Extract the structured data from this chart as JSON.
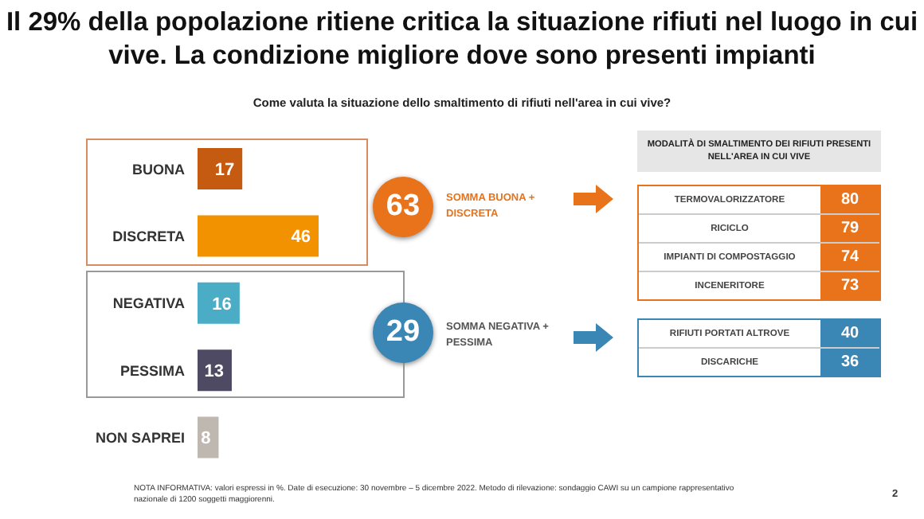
{
  "chart_data": [
    {
      "type": "bar",
      "orientation": "horizontal",
      "title": "Il 29% della popolazione ritiene critica la situazione rifiuti nel luogo in cui vive. La condizione migliore dove sono presenti impianti",
      "subtitle": "Come valuta la situazione dello smaltimento di rifiuti nell'area in cui vive?",
      "categories": [
        "BUONA",
        "DISCRETA",
        "NEGATIVA",
        "PESSIMA",
        "NON SAPREI"
      ],
      "values": [
        17,
        46,
        16,
        13,
        8
      ],
      "colors": [
        "#c55a11",
        "#f39200",
        "#4bacc6",
        "#4e4a63",
        "#bfb8b0"
      ],
      "data_labels": true,
      "annotations": [
        "63",
        "SOMMA BUONA + DISCRETA",
        "29",
        "SOMMA NEGATIVA + PESSIMA",
        "NOTA INFORMATIVA: valori espressi in %. Date di esecuzione: 30 novembre – 5 dicembre 2022. Metodo di rilevazione: sondaggio CAWI su un campione rappresentativo nazionale di 1200 soggetti maggiorenni.",
        "2"
      ]
    },
    {
      "type": "other",
      "title": "MODALITÀ DI SMALTIMENTO DEI RIFIUTI PRESENTI NELL'AREA IN CUI VIVE",
      "categories": [
        "TERMOVALORIZZATORE",
        "RICICLO",
        "IMPIANTI DI COMPOSTAGGIO",
        "INCENERITORE",
        "RIFIUTI PORTATI ALTROVE",
        "DISCARICHE"
      ],
      "values": [
        80,
        79,
        74,
        73,
        40,
        36
      ],
      "colors": [
        "#e8731a",
        "#e8731a",
        "#e8731a",
        "#e8731a",
        "#3a86b4",
        "#3a86b4"
      ],
      "data_labels": true
    }
  ]
}
